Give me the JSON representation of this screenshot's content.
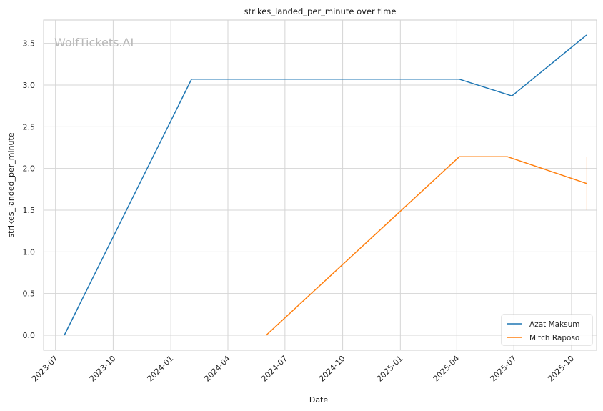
{
  "chart_data": {
    "type": "line",
    "title": "strikes_landed_per_minute over time",
    "xlabel": "Date",
    "ylabel": "strikes_landed_per_minute",
    "watermark": "WolfTickets.AI",
    "x_ticks": [
      "2023-07",
      "2023-10",
      "2024-01",
      "2024-04",
      "2024-07",
      "2024-10",
      "2025-01",
      "2025-04",
      "2025-07",
      "2025-10"
    ],
    "y_ticks": [
      "0.0",
      "0.5",
      "1.0",
      "1.5",
      "2.0",
      "2.5",
      "3.0",
      "3.5"
    ],
    "xlim": [
      "2023-06-12",
      "2025-11-10"
    ],
    "ylim": [
      -0.18,
      3.78
    ],
    "grid": true,
    "legend_position": "lower-right",
    "series": [
      {
        "name": "Azat Maksum",
        "color": "#1f77b4",
        "points": [
          {
            "x": "2023-07-15",
            "y": 0.0
          },
          {
            "x": "2024-02-03",
            "y": 3.07
          },
          {
            "x": "2025-04-05",
            "y": 3.07
          },
          {
            "x": "2025-06-28",
            "y": 2.87
          },
          {
            "x": "2025-10-25",
            "y": 3.6
          }
        ]
      },
      {
        "name": "Mitch Raposo",
        "color": "#ff7f0e",
        "points": [
          {
            "x": "2024-06-01",
            "y": 0.0
          },
          {
            "x": "2025-04-05",
            "y": 2.14
          },
          {
            "x": "2025-06-21",
            "y": 2.14
          },
          {
            "x": "2025-10-25",
            "y": 1.82
          }
        ],
        "error_bar": {
          "x": "2025-10-25",
          "low": 1.5,
          "high": 2.14
        }
      }
    ]
  }
}
